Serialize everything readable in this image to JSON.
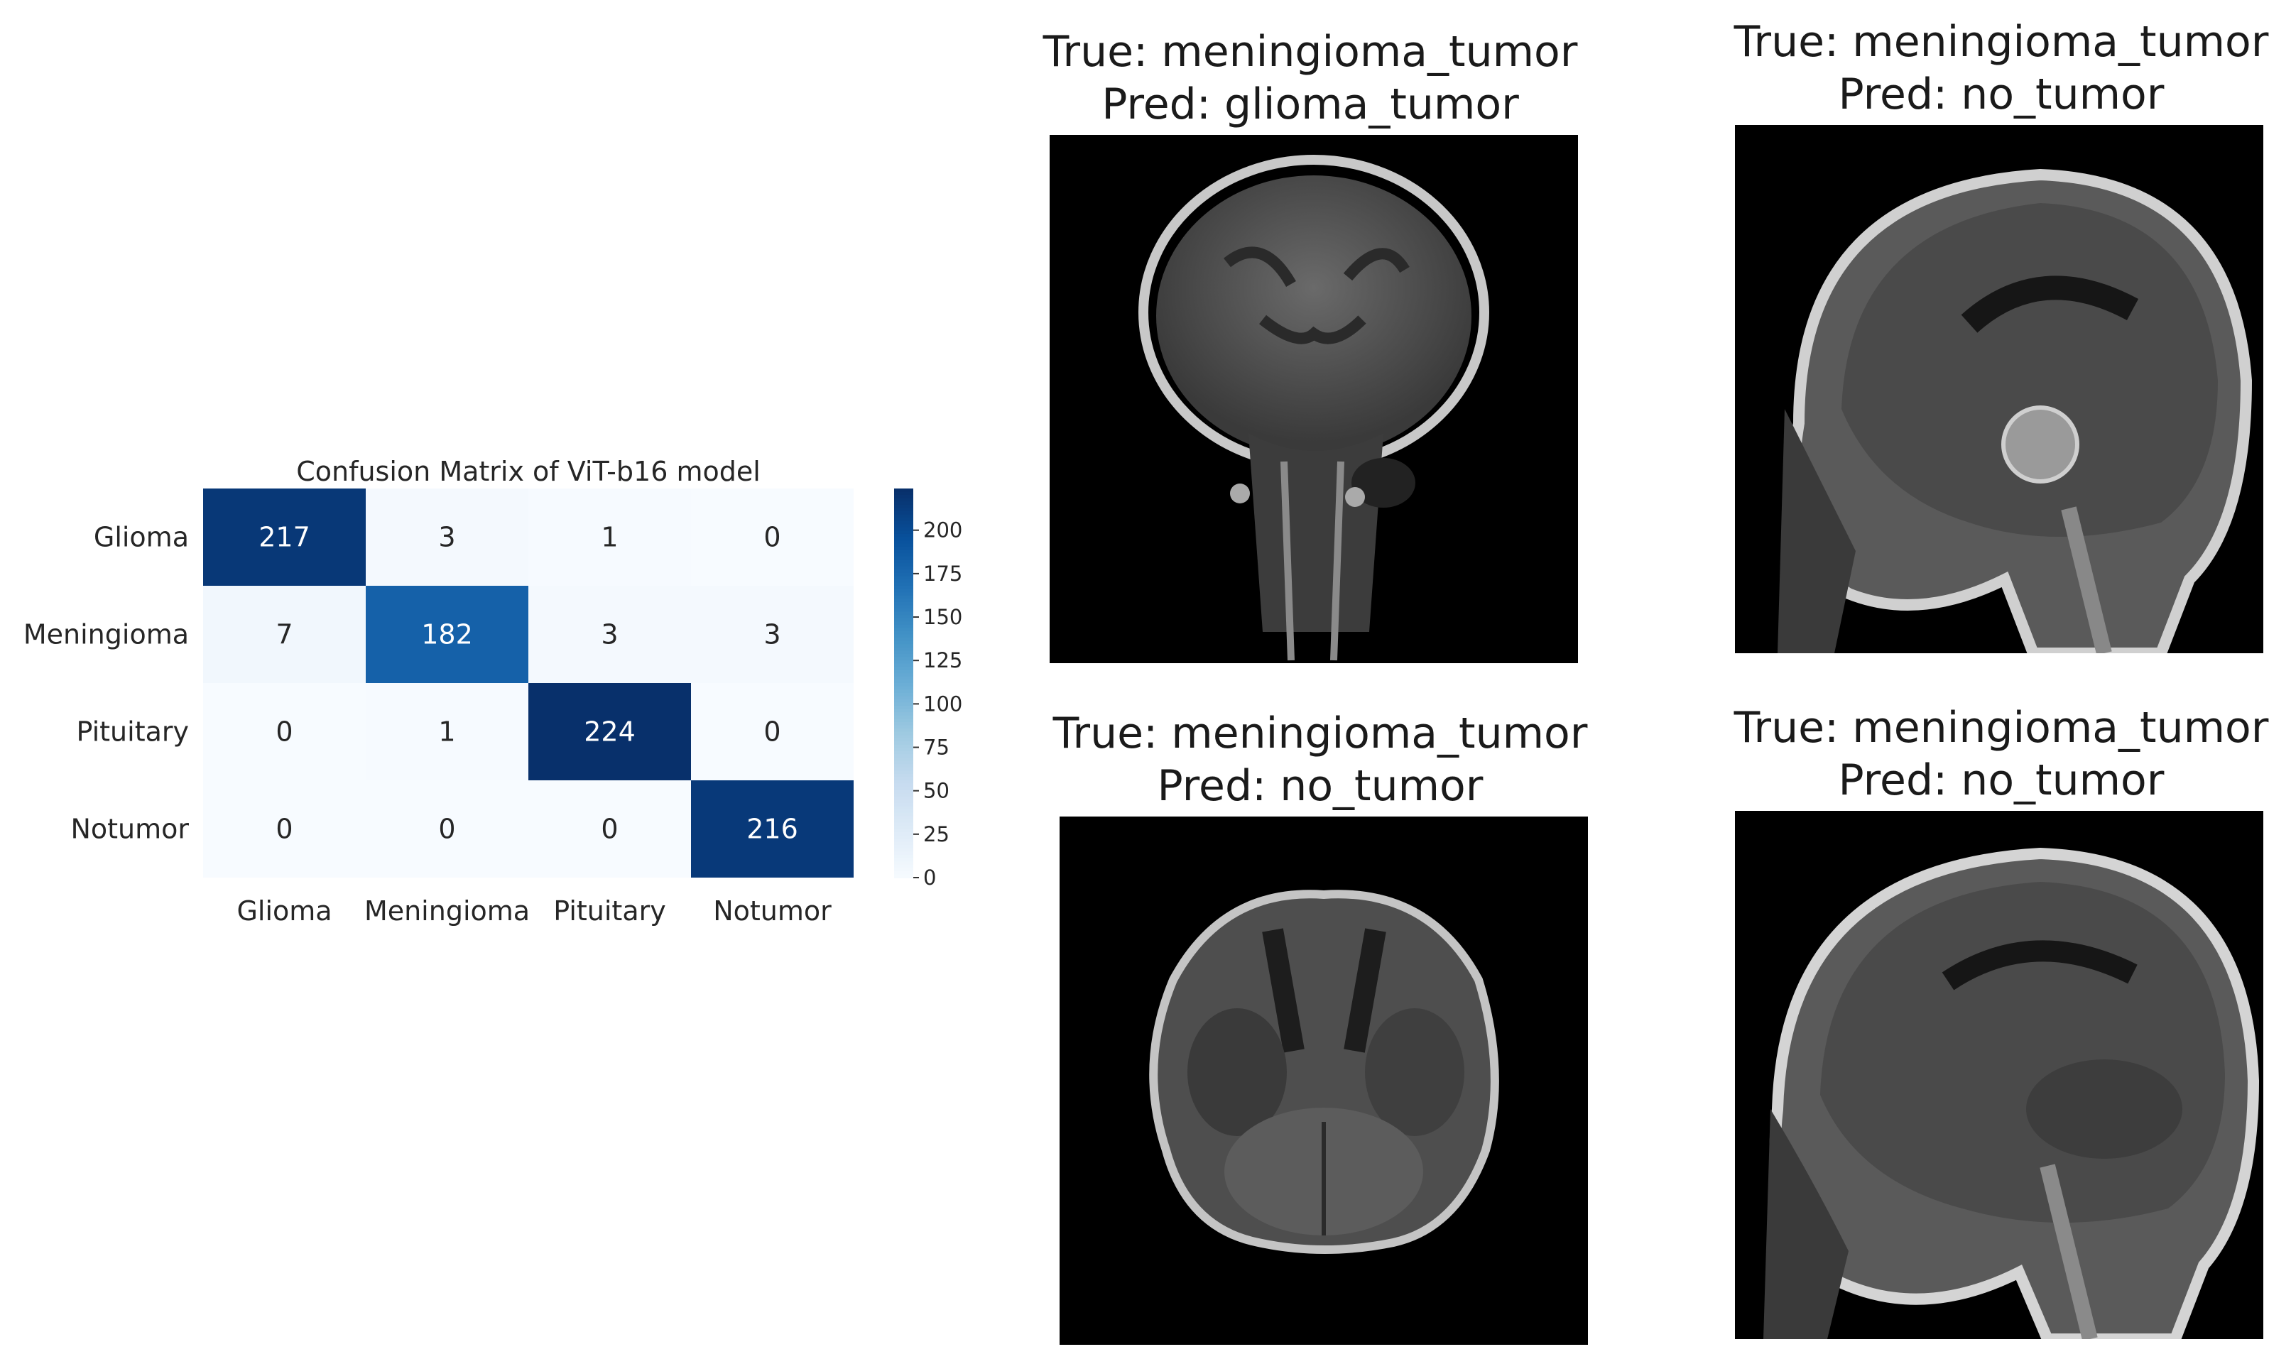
{
  "chart_data": {
    "type": "heatmap",
    "title": "Confusion Matrix of ViT-b16 model",
    "row_labels": [
      "Glioma",
      "Meningioma",
      "Pituitary",
      "Notumor"
    ],
    "col_labels": [
      "Glioma",
      "Meningioma",
      "Pituitary",
      "Notumor"
    ],
    "values": [
      [
        217,
        3,
        1,
        0
      ],
      [
        7,
        182,
        3,
        3
      ],
      [
        0,
        1,
        224,
        0
      ],
      [
        0,
        0,
        0,
        216
      ]
    ],
    "colormap": "Blues",
    "color_range": [
      0,
      224
    ],
    "colorbar_ticks": [
      0,
      25,
      50,
      75,
      100,
      125,
      150,
      175,
      200
    ]
  },
  "panels": [
    {
      "true_label": "True: meningioma_tumor",
      "pred_label": "Pred: glioma_tumor",
      "view": "coronal"
    },
    {
      "true_label": "True: meningioma_tumor",
      "pred_label": "Pred: no_tumor",
      "view": "sagittal"
    },
    {
      "true_label": "True: meningioma_tumor",
      "pred_label": "Pred: no_tumor",
      "view": "axial"
    },
    {
      "true_label": "True: meningioma_tumor",
      "pred_label": "Pred: no_tumor",
      "view": "sagittal"
    }
  ]
}
